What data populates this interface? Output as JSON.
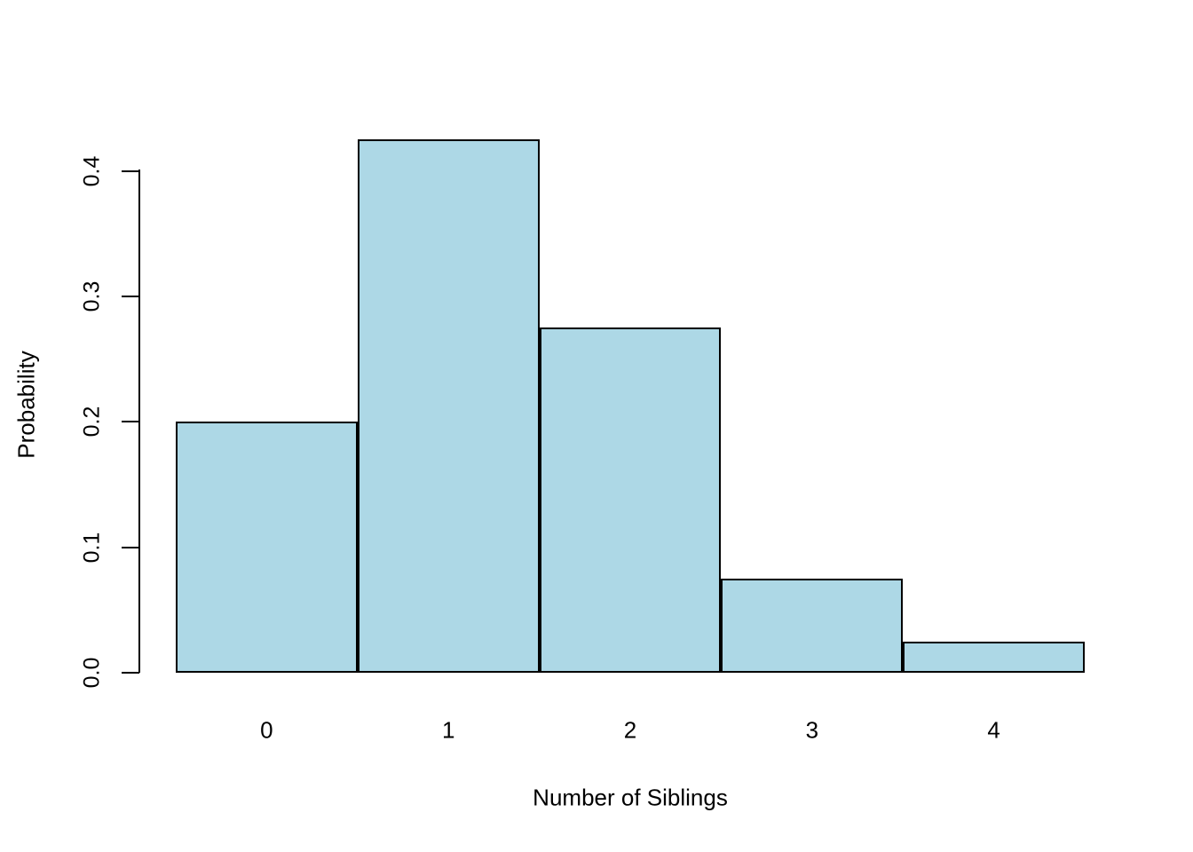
{
  "figure": {
    "background": "#FFFFFF"
  },
  "chart_data": {
    "type": "bar",
    "title": "",
    "xlabel": "Number of Siblings",
    "ylabel": "Probability",
    "categories": [
      "0",
      "1",
      "2",
      "3",
      "4"
    ],
    "values": [
      0.2,
      0.425,
      0.275,
      0.075,
      0.025
    ],
    "ylim": [
      0.0,
      0.4
    ],
    "yticks": [
      0.0,
      0.1,
      0.2,
      0.3,
      0.4
    ],
    "ytick_labels": [
      "0.0",
      "0.1",
      "0.2",
      "0.3",
      "0.4"
    ],
    "bar_fill": "#ADD8E6",
    "bar_border": "#000000",
    "axis_color": "#000000",
    "text_color": "#000000",
    "grid": false
  }
}
